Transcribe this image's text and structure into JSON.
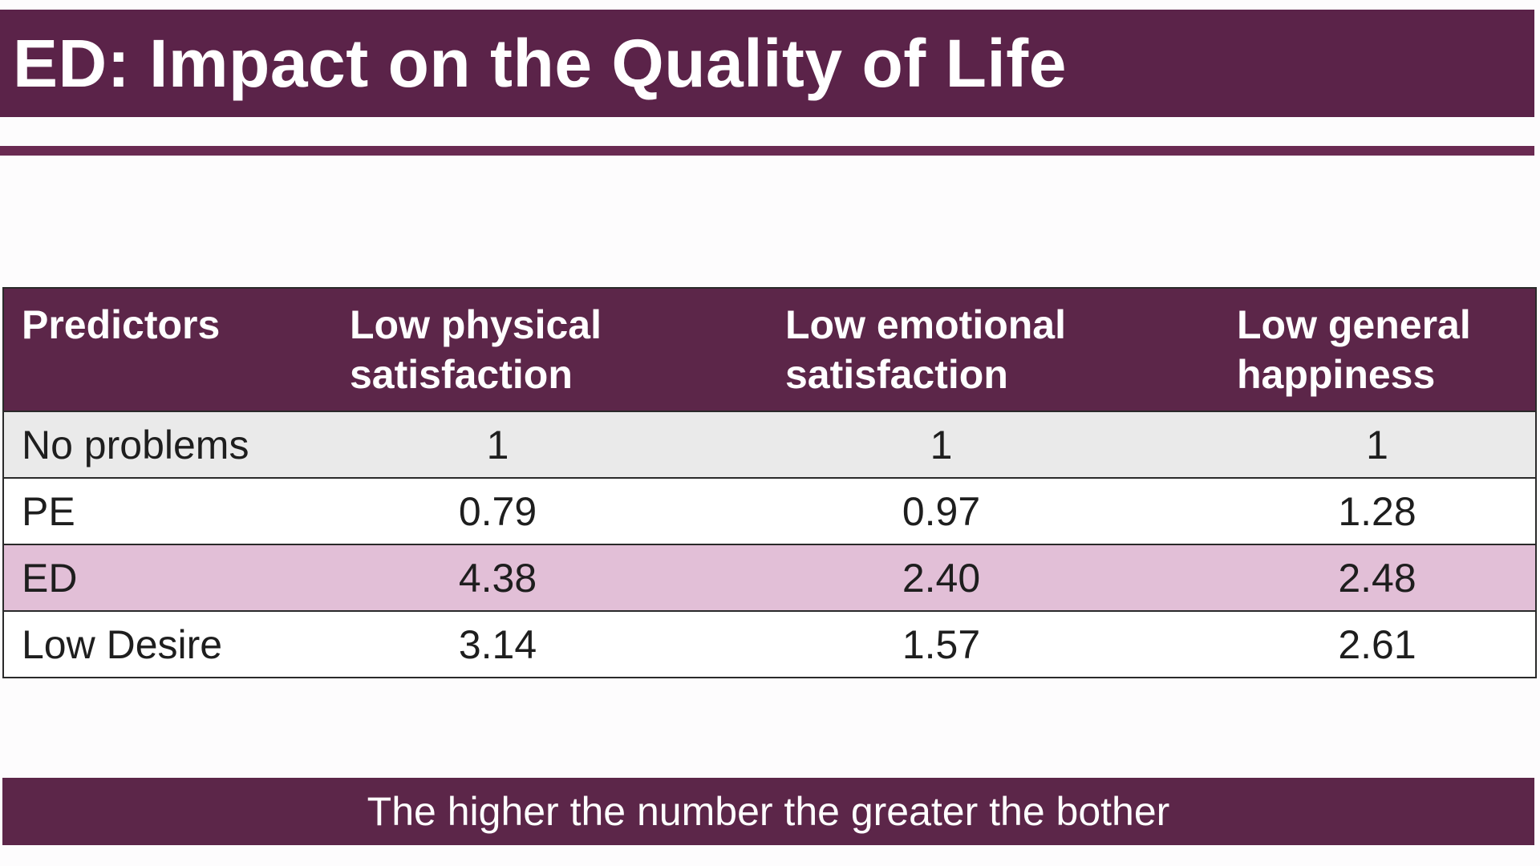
{
  "slide": {
    "title": "ED: Impact on the Quality of Life",
    "footer": "The higher the number the greater the bother"
  },
  "table": {
    "headers": [
      {
        "line1": "Predictors",
        "line2": ""
      },
      {
        "line1": "Low physical",
        "line2": "satisfaction"
      },
      {
        "line1": "Low emotional",
        "line2": "satisfaction"
      },
      {
        "line1": "Low general",
        "line2": "happiness"
      }
    ],
    "rows": [
      {
        "label": "No problems",
        "values": [
          "1",
          "1",
          "1"
        ],
        "style": "gray"
      },
      {
        "label": "PE",
        "values": [
          "0.79",
          "0.97",
          "1.28"
        ],
        "style": "white"
      },
      {
        "label": "ED",
        "values": [
          "4.38",
          "2.40",
          "2.48"
        ],
        "style": "pink"
      },
      {
        "label": "Low Desire",
        "values": [
          "3.14",
          "1.57",
          "2.61"
        ],
        "style": "white"
      }
    ]
  },
  "colors": {
    "brand_plum": "#5c2649",
    "highlight_pink": "#e2bfd7",
    "row_gray": "#eaeaea"
  }
}
